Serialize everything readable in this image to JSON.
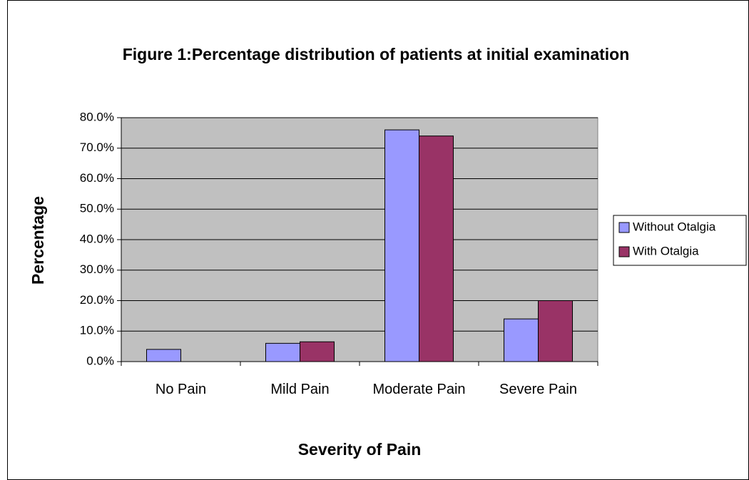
{
  "chart_data": {
    "type": "bar",
    "title": "Figure 1:Percentage distribution of patients at initial examination",
    "x_label": "Severity of Pain",
    "y_label": "Percentage",
    "categories": [
      "No Pain",
      "Mild Pain",
      "Moderate Pain",
      "Severe Pain"
    ],
    "series": [
      {
        "name": "Without Otalgia",
        "color": "#9999ff",
        "values": [
          4.0,
          6.0,
          76.0,
          14.0
        ]
      },
      {
        "name": "With Otalgia",
        "color": "#993366",
        "values": [
          0.0,
          6.5,
          74.0,
          20.0
        ]
      }
    ],
    "ylim": [
      0,
      80
    ],
    "yticks": [
      {
        "value": 0,
        "label": "0.0%"
      },
      {
        "value": 10,
        "label": "10.0%"
      },
      {
        "value": 20,
        "label": "20.0%"
      },
      {
        "value": 30,
        "label": "30.0%"
      },
      {
        "value": 40,
        "label": "40.0%"
      },
      {
        "value": 50,
        "label": "50.0%"
      },
      {
        "value": 60,
        "label": "60.0%"
      },
      {
        "value": 70,
        "label": "70.0%"
      },
      {
        "value": 80,
        "label": "80.0%"
      }
    ],
    "grid": true,
    "legend": "right"
  }
}
